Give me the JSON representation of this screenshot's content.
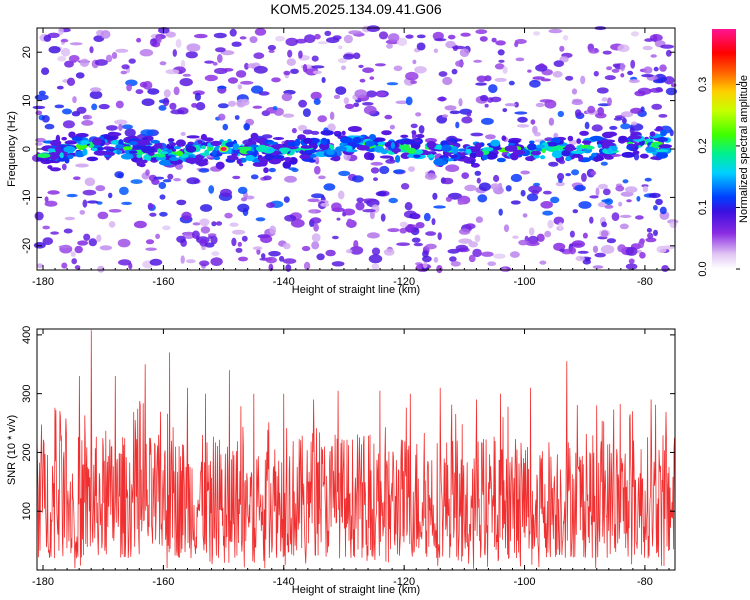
{
  "title": "KOM5.2025.134.09.41.G06",
  "chart_data": [
    {
      "type": "heatmap",
      "xlabel": "Height of straight line (km)",
      "ylabel": "Frequency (Hz)",
      "xlim": [
        -181,
        -75
      ],
      "ylim": [
        -25,
        25
      ],
      "xticks": [
        -180,
        -160,
        -140,
        -120,
        -100,
        -80
      ],
      "yticks": [
        -20,
        -10,
        0,
        10,
        20
      ],
      "colorbar": {
        "label": "Normalized spectral amplitude",
        "range": [
          0.0,
          0.39
        ],
        "ticks": [
          0.0,
          0.1,
          0.2,
          0.3
        ],
        "colormap": "white-lavender-purple-blue-cyan-green-yellow-orange-red-magenta"
      },
      "description_values": {
        "band_center_hz": [
          {
            "x": -180,
            "y": -1
          },
          {
            "x": -170,
            "y": 1
          },
          {
            "x": -160,
            "y": -1
          },
          {
            "x": -150,
            "y": 0
          },
          {
            "x": -140,
            "y": -1
          },
          {
            "x": -130,
            "y": 1
          },
          {
            "x": -120,
            "y": 0
          },
          {
            "x": -110,
            "y": -1
          },
          {
            "x": -100,
            "y": 0
          },
          {
            "x": -90,
            "y": 0
          },
          {
            "x": -80,
            "y": 1
          },
          {
            "x": -76,
            "y": 1
          }
        ],
        "band_halfwidth_hz": 4,
        "peak": {
          "x": -150,
          "y": 0,
          "value": 0.38
        }
      }
    },
    {
      "type": "line",
      "xlabel": "Height of straight line (km)",
      "ylabel": "SNR (10 * v/v)",
      "xlim": [
        -181,
        -75
      ],
      "ylim": [
        0,
        410
      ],
      "xticks": [
        -180,
        -160,
        -140,
        -120,
        -100,
        -80
      ],
      "yticks": [
        100,
        200,
        300,
        400
      ],
      "series": [
        {
          "color": "#f03030",
          "baseline_mean": 120,
          "noise_range": [
            20,
            230
          ],
          "spikes": [
            {
              "x": -177,
              "y": 220
            },
            {
              "x": -172,
              "y": 408
            },
            {
              "x": -174,
              "y": 330
            },
            {
              "x": -168,
              "y": 330
            },
            {
              "x": -163,
              "y": 350
            },
            {
              "x": -159,
              "y": 370
            },
            {
              "x": -156,
              "y": 310
            },
            {
              "x": -153,
              "y": 300
            },
            {
              "x": -149,
              "y": 340
            },
            {
              "x": -145,
              "y": 300
            },
            {
              "x": -140,
              "y": 300
            },
            {
              "x": -135,
              "y": 290
            },
            {
              "x": -131,
              "y": 305
            },
            {
              "x": -124,
              "y": 305
            },
            {
              "x": -119,
              "y": 300
            },
            {
              "x": -114,
              "y": 310
            },
            {
              "x": -108,
              "y": 290
            },
            {
              "x": -104,
              "y": 300
            },
            {
              "x": -99,
              "y": 310
            },
            {
              "x": -93,
              "y": 355
            },
            {
              "x": -88,
              "y": 280
            },
            {
              "x": -82,
              "y": 270
            },
            {
              "x": -79,
              "y": 290
            }
          ]
        }
      ]
    }
  ]
}
